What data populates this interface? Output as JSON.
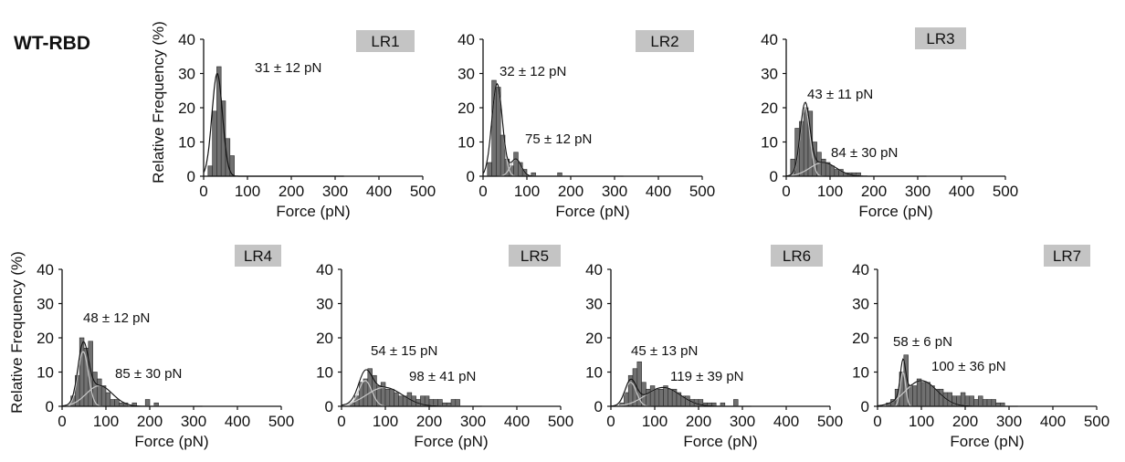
{
  "figure": {
    "panel_label": "WT-RBD",
    "ylabel": "Relative Frequency (%)",
    "xlabel": "Force (pN)"
  },
  "colors": {
    "bar_fill": "#707070",
    "bar_stroke": "#2a2a2a",
    "fit_dark": "#111111",
    "fit_light": "#c8c8c8",
    "tag_bg": "#c4c4c4"
  },
  "chart_data": [
    {
      "type": "bar",
      "title": "LR1",
      "xlabel": "Force (pN)",
      "ylabel": "Relative Frequency (%)",
      "xlim": [
        0,
        500
      ],
      "ylim": [
        0,
        40
      ],
      "xticks": [
        0,
        100,
        200,
        300,
        400,
        500
      ],
      "yticks": [
        0,
        10,
        20,
        30,
        40
      ],
      "bin_width": 10,
      "bin_starts": [
        10,
        20,
        30,
        40,
        50,
        60
      ],
      "values": [
        3,
        19,
        32,
        22,
        11,
        6
      ],
      "fits": [
        {
          "mean": 31,
          "sd": 12,
          "peak": 30,
          "label": "31 ± 12 pN"
        }
      ]
    },
    {
      "type": "bar",
      "title": "LR2",
      "xlabel": "Force (pN)",
      "ylabel": "Relative Frequency (%)",
      "xlim": [
        0,
        500
      ],
      "ylim": [
        0,
        40
      ],
      "xticks": [
        0,
        100,
        200,
        300,
        400,
        500
      ],
      "yticks": [
        0,
        10,
        20,
        30,
        40
      ],
      "bin_width": 10,
      "bin_starts": [
        10,
        20,
        30,
        40,
        50,
        60,
        70,
        80,
        90,
        110,
        170
      ],
      "values": [
        4,
        28,
        26,
        12,
        5,
        3,
        7,
        4,
        2,
        1,
        1
      ],
      "fits": [
        {
          "mean": 32,
          "sd": 12,
          "peak": 27,
          "label": "32 ± 12 pN"
        },
        {
          "mean": 75,
          "sd": 12,
          "peak": 5,
          "label": "75 ± 12 pN"
        }
      ]
    },
    {
      "type": "bar",
      "title": "LR3",
      "xlabel": "Force (pN)",
      "ylabel": "Relative Frequency (%)",
      "xlim": [
        0,
        500
      ],
      "ylim": [
        0,
        40
      ],
      "xticks": [
        0,
        100,
        200,
        300,
        400,
        500
      ],
      "yticks": [
        0,
        10,
        20,
        30,
        40
      ],
      "bin_width": 10,
      "bin_starts": [
        10,
        20,
        30,
        40,
        50,
        60,
        70,
        80,
        90,
        100,
        110,
        120,
        130,
        140,
        150,
        160
      ],
      "values": [
        5,
        14,
        16,
        20,
        19,
        10,
        7,
        5,
        4,
        3,
        2,
        2,
        1,
        1,
        1,
        1
      ],
      "fits": [
        {
          "mean": 43,
          "sd": 11,
          "peak": 20,
          "label": "43 ± 11 pN"
        },
        {
          "mean": 84,
          "sd": 30,
          "peak": 4,
          "label": "84 ± 30 pN"
        }
      ]
    },
    {
      "type": "bar",
      "title": "LR4",
      "xlabel": "Force (pN)",
      "ylabel": "Relative Frequency (%)",
      "xlim": [
        0,
        500
      ],
      "ylim": [
        0,
        40
      ],
      "xticks": [
        0,
        100,
        200,
        300,
        400,
        500
      ],
      "yticks": [
        0,
        10,
        20,
        30,
        40
      ],
      "bin_width": 10,
      "bin_starts": [
        20,
        30,
        40,
        50,
        60,
        70,
        80,
        90,
        100,
        110,
        120,
        130,
        140,
        160,
        190,
        210
      ],
      "values": [
        3,
        9,
        20,
        17,
        19,
        10,
        8,
        6,
        4,
        2,
        2,
        1,
        1,
        1,
        2,
        1
      ],
      "fits": [
        {
          "mean": 48,
          "sd": 12,
          "peak": 16,
          "label": "48 ± 12 pN"
        },
        {
          "mean": 85,
          "sd": 30,
          "peak": 6,
          "label": "85 ± 30 pN"
        }
      ]
    },
    {
      "type": "bar",
      "title": "LR5",
      "xlabel": "Force (pN)",
      "ylabel": "Relative Frequency (%)",
      "xlim": [
        0,
        500
      ],
      "ylim": [
        0,
        40
      ],
      "xticks": [
        0,
        100,
        200,
        300,
        400,
        500
      ],
      "yticks": [
        0,
        10,
        20,
        30,
        40
      ],
      "bin_width": 10,
      "bin_starts": [
        20,
        30,
        40,
        50,
        60,
        70,
        80,
        90,
        100,
        110,
        120,
        130,
        140,
        150,
        160,
        170,
        180,
        190,
        200,
        210,
        220,
        230,
        240,
        250,
        260
      ],
      "values": [
        1,
        3,
        7,
        8,
        11,
        9,
        6,
        7,
        5,
        5,
        4,
        3,
        3,
        4,
        3,
        2,
        3,
        3,
        2,
        2,
        2,
        1,
        1,
        2,
        2
      ],
      "fits": [
        {
          "mean": 54,
          "sd": 15,
          "peak": 7.5,
          "label": "54 ± 15 pN"
        },
        {
          "mean": 98,
          "sd": 41,
          "peak": 5.5,
          "label": "98 ± 41 pN"
        }
      ]
    },
    {
      "type": "bar",
      "title": "LR6",
      "xlabel": "Force (pN)",
      "ylabel": "Relative Frequency (%)",
      "xlim": [
        0,
        500
      ],
      "ylim": [
        0,
        40
      ],
      "xticks": [
        0,
        100,
        200,
        300,
        400,
        500
      ],
      "yticks": [
        0,
        10,
        20,
        30,
        40
      ],
      "bin_width": 10,
      "bin_starts": [
        20,
        30,
        40,
        50,
        60,
        70,
        80,
        90,
        100,
        110,
        120,
        130,
        140,
        150,
        160,
        170,
        180,
        190,
        200,
        210,
        220,
        230,
        250,
        280
      ],
      "values": [
        1,
        4,
        9,
        11,
        13,
        7,
        5,
        6,
        5,
        5,
        6,
        5,
        5,
        4,
        3,
        3,
        2,
        2,
        2,
        1,
        1,
        1,
        1,
        2
      ],
      "fits": [
        {
          "mean": 45,
          "sd": 13,
          "peak": 7,
          "label": "45 ± 13 pN"
        },
        {
          "mean": 119,
          "sd": 39,
          "peak": 5.5,
          "label": "119 ± 39 pN"
        }
      ]
    },
    {
      "type": "bar",
      "title": "LR7",
      "xlabel": "Force (pN)",
      "ylabel": "Relative Frequency (%)",
      "xlim": [
        0,
        500
      ],
      "ylim": [
        0,
        40
      ],
      "xticks": [
        0,
        100,
        200,
        300,
        400,
        500
      ],
      "yticks": [
        0,
        10,
        20,
        30,
        40
      ],
      "bin_width": 10,
      "bin_starts": [
        20,
        30,
        40,
        50,
        60,
        70,
        80,
        90,
        100,
        110,
        120,
        130,
        140,
        150,
        160,
        170,
        180,
        190,
        200,
        210,
        220,
        230,
        240,
        250,
        260,
        270,
        280
      ],
      "values": [
        1,
        2,
        5,
        10,
        15,
        6,
        6,
        8,
        7,
        7,
        6,
        5,
        5,
        4,
        4,
        3,
        3,
        4,
        3,
        3,
        2,
        3,
        2,
        2,
        2,
        1,
        1
      ],
      "fits": [
        {
          "mean": 58,
          "sd": 6,
          "peak": 10,
          "label": "58 ± 6 pN"
        },
        {
          "mean": 100,
          "sd": 36,
          "peak": 7.5,
          "label": "100 ± 36 pN"
        }
      ]
    }
  ]
}
